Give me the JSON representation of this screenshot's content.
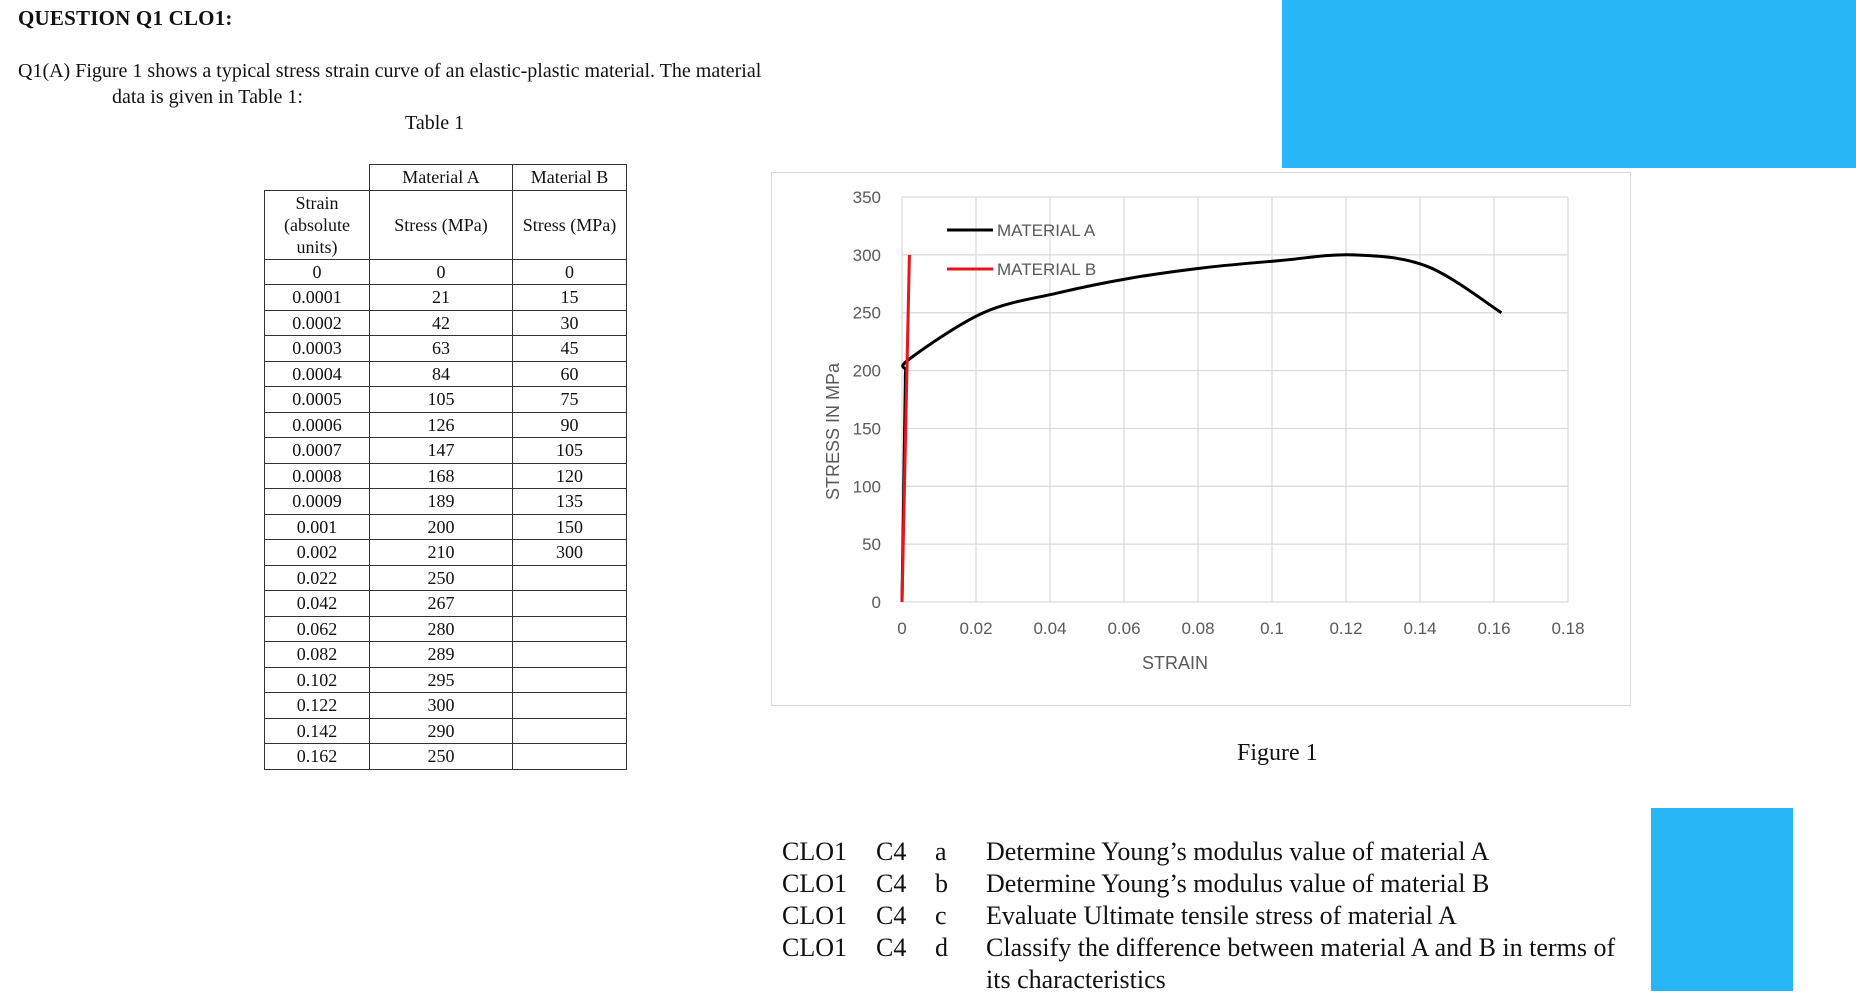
{
  "heading": "QUESTION Q1 CLO1:",
  "intro": {
    "line1": "Q1(A) Figure 1 shows a typical stress strain curve of an elastic-plastic material. The material",
    "line2": "data is given in   Table 1:"
  },
  "table": {
    "title": "Table 1",
    "top_headers": [
      "",
      "Material A",
      "Material B"
    ],
    "col_headers": [
      "Strain (absolute units)",
      "Stress (MPa)",
      "Stress (MPa)"
    ],
    "rows": [
      [
        "0",
        "0",
        "0"
      ],
      [
        "0.0001",
        "21",
        "15"
      ],
      [
        "0.0002",
        "42",
        "30"
      ],
      [
        "0.0003",
        "63",
        "45"
      ],
      [
        "0.0004",
        "84",
        "60"
      ],
      [
        "0.0005",
        "105",
        "75"
      ],
      [
        "0.0006",
        "126",
        "90"
      ],
      [
        "0.0007",
        "147",
        "105"
      ],
      [
        "0.0008",
        "168",
        "120"
      ],
      [
        "0.0009",
        "189",
        "135"
      ],
      [
        "0.001",
        "200",
        "150"
      ],
      [
        "0.002",
        "210",
        "300"
      ],
      [
        "0.022",
        "250",
        ""
      ],
      [
        "0.042",
        "267",
        ""
      ],
      [
        "0.062",
        "280",
        ""
      ],
      [
        "0.082",
        "289",
        ""
      ],
      [
        "0.102",
        "295",
        ""
      ],
      [
        "0.122",
        "300",
        ""
      ],
      [
        "0.142",
        "290",
        ""
      ],
      [
        "0.162",
        "250",
        ""
      ]
    ]
  },
  "chart_data": {
    "type": "line",
    "title": "",
    "xlabel": "STRAIN",
    "ylabel": "STRESS IN MPa",
    "xlim": [
      0,
      0.18
    ],
    "ylim": [
      0,
      350
    ],
    "xticks": [
      "0",
      "0.02",
      "0.04",
      "0.06",
      "0.08",
      "0.1",
      "0.12",
      "0.14",
      "0.16",
      "0.18"
    ],
    "yticks": [
      "0",
      "50",
      "100",
      "150",
      "200",
      "250",
      "300",
      "350"
    ],
    "grid": true,
    "legend_position": "top-left",
    "series": [
      {
        "name": "MATERIAL A",
        "color": "#000000",
        "x": [
          0,
          0.0001,
          0.0002,
          0.0003,
          0.0004,
          0.0005,
          0.0006,
          0.0007,
          0.0008,
          0.0009,
          0.001,
          0.002,
          0.022,
          0.042,
          0.062,
          0.082,
          0.102,
          0.122,
          0.142,
          0.162
        ],
        "y": [
          0,
          21,
          42,
          63,
          84,
          105,
          126,
          147,
          168,
          189,
          200,
          210,
          250,
          267,
          280,
          289,
          295,
          300,
          290,
          250
        ]
      },
      {
        "name": "MATERIAL B",
        "color": "#e8141b",
        "x": [
          0,
          0.0001,
          0.0002,
          0.0003,
          0.0004,
          0.0005,
          0.0006,
          0.0007,
          0.0008,
          0.0009,
          0.001,
          0.002
        ],
        "y": [
          0,
          15,
          30,
          45,
          60,
          75,
          90,
          105,
          120,
          135,
          150,
          300
        ]
      }
    ]
  },
  "figure_caption": "Figure 1",
  "clo_items": [
    {
      "clo": "CLO1",
      "level": "C4",
      "letter": "a",
      "text": "Determine Young’s modulus value of material A",
      "cont": ""
    },
    {
      "clo": "CLO1",
      "level": "C4",
      "letter": "b",
      "text": "Determine Young’s modulus value of material B",
      "cont": ""
    },
    {
      "clo": "CLO1",
      "level": "C4",
      "letter": "c",
      "text": "Evaluate Ultimate tensile stress of material A",
      "cont": ""
    },
    {
      "clo": "CLO1",
      "level": "C4",
      "letter": "d",
      "text": "Classify the difference between material A and B in terms of",
      "cont": "its characteristics"
    }
  ],
  "colors": {
    "accent_blue": "#29b6f6",
    "material_a": "#000000",
    "material_b": "#e8141b",
    "gridline": "#d9d9d9"
  }
}
